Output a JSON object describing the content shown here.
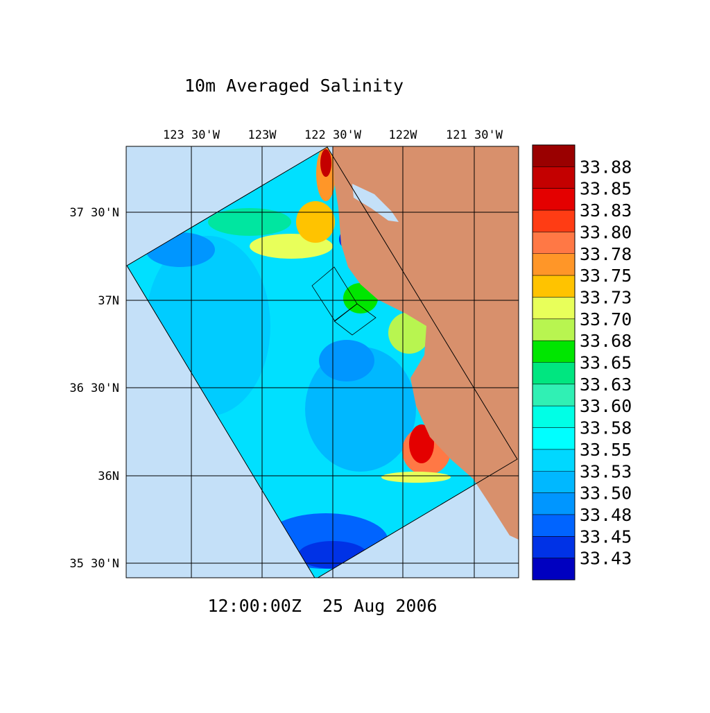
{
  "title": "10m Averaged Salinity",
  "timestamp": "12:00:00Z  25 Aug 2006",
  "lon_labels": [
    "123 30'W",
    "123W",
    "122 30'W",
    "122W",
    "121 30'W"
  ],
  "lat_labels": [
    "37 30'N",
    "37N",
    "36 30'N",
    "36N",
    "35 30'N"
  ],
  "colorbar": {
    "labels": [
      "33.88",
      "33.85",
      "33.83",
      "33.80",
      "33.78",
      "33.75",
      "33.73",
      "33.70",
      "33.68",
      "33.65",
      "33.63",
      "33.60",
      "33.58",
      "33.55",
      "33.53",
      "33.50",
      "33.48",
      "33.45",
      "33.43"
    ],
    "colors": [
      "#9a0000",
      "#c40000",
      "#e40000",
      "#ff3c14",
      "#ff7845",
      "#ff9628",
      "#ffc300",
      "#e8ff5a",
      "#b8f550",
      "#00e600",
      "#00e680",
      "#30f0b4",
      "#00ffe6",
      "#00ffff",
      "#00d8ff",
      "#00b8ff",
      "#0096ff",
      "#0064ff",
      "#0032e6",
      "#0000c0"
    ]
  }
}
